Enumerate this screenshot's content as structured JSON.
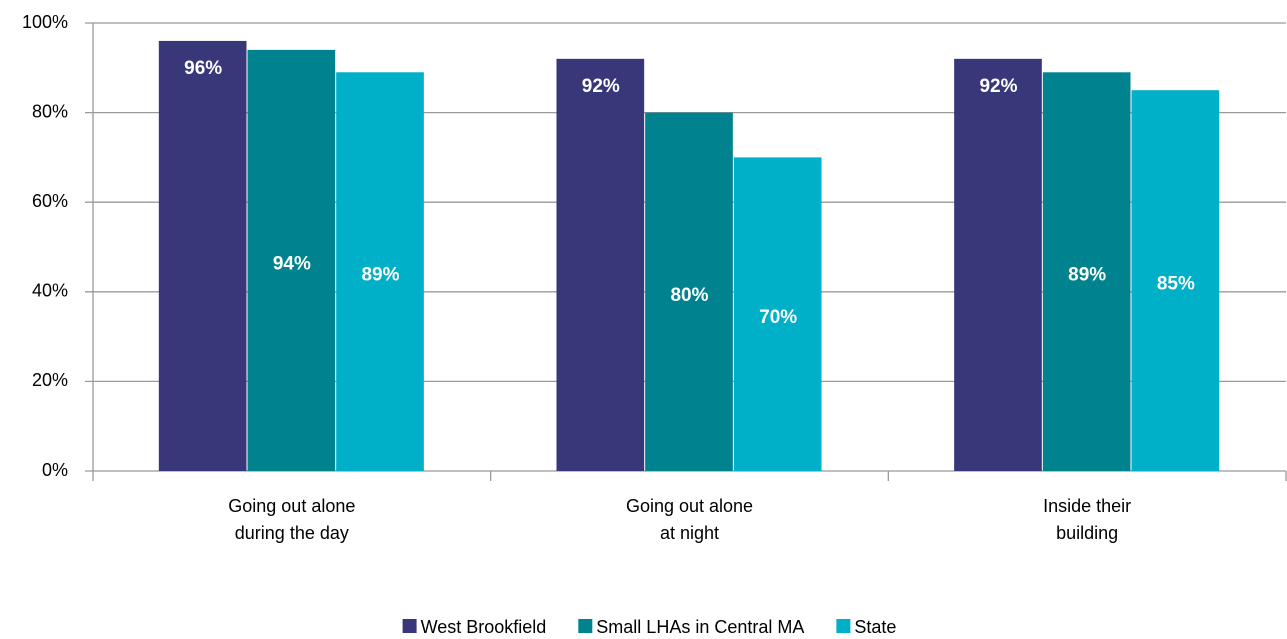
{
  "chart_data": {
    "type": "bar",
    "categories": [
      "Going out alone during the day",
      "Going out alone at night",
      "Inside their building"
    ],
    "series": [
      {
        "name": "West Brookfield",
        "color": "#37377a",
        "values": [
          96,
          92,
          92
        ],
        "value_labels": [
          "96%",
          "92%",
          "92%"
        ]
      },
      {
        "name": "Small LHAs in Central MA",
        "color": "#00838f",
        "values": [
          94,
          80,
          89
        ],
        "value_labels": [
          "94%",
          "80%",
          "89%"
        ]
      },
      {
        "name": "State",
        "color": "#00afc8",
        "values": [
          89,
          70,
          85
        ],
        "value_labels": [
          "89%",
          "70%",
          "85%"
        ]
      }
    ],
    "ylim": [
      0,
      100
    ],
    "yticks": [
      {
        "value": 0,
        "label": "0%"
      },
      {
        "value": 20,
        "label": "20%"
      },
      {
        "value": 40,
        "label": "40%"
      },
      {
        "value": 60,
        "label": "60%"
      },
      {
        "value": 80,
        "label": "80%"
      },
      {
        "value": 100,
        "label": "100%"
      }
    ],
    "grid": true,
    "legend": "bottom"
  }
}
